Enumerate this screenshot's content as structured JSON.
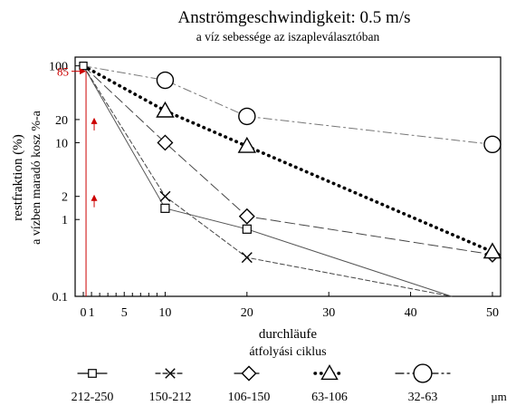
{
  "chart_data": {
    "type": "line",
    "title": "Anströmgeschwindigkeit:   0.5   m/s",
    "subtitle": "a víz sebessége az iszapleválasztóban",
    "ylabel": "restfraktion (%)",
    "ylabel2": "a vízben maradó kosz %-a",
    "xlabel": "durchläufe",
    "xlabel2": "átfolyási ciklus",
    "unit": "µm",
    "yscale": "log",
    "xlim": [
      -1,
      51
    ],
    "ylim": [
      0.1,
      130
    ],
    "x_ticks": [
      0,
      1,
      5,
      10,
      20,
      30,
      40,
      50
    ],
    "x_tick_labels": [
      "0",
      "1",
      "5",
      "10",
      "20",
      "30",
      "40",
      "50"
    ],
    "x_minor_ticks": [
      2,
      3,
      4,
      6,
      7,
      8,
      9
    ],
    "y_ticks": [
      100,
      20,
      10,
      2,
      1,
      0.1
    ],
    "y_tick_labels": [
      "100",
      "20",
      "10",
      "2",
      "1",
      "0.1"
    ],
    "grid": false,
    "legend_position": "bottom",
    "annotation": {
      "label": "85",
      "y": 85,
      "x": 0,
      "color": "#cc0000",
      "arrows_at_y": [
        2,
        20
      ],
      "arrow_x": 1
    },
    "series": [
      {
        "name": "212-250",
        "marker": "square",
        "dash": "solid",
        "x": [
          0,
          10,
          20,
          45
        ],
        "y": [
          100,
          1.4,
          0.75,
          0.1
        ]
      },
      {
        "name": "150-212",
        "marker": "x",
        "dash": "shortdash",
        "x": [
          0,
          10,
          20,
          45
        ],
        "y": [
          100,
          2.0,
          0.32,
          0.1
        ]
      },
      {
        "name": "106-150",
        "marker": "diamond",
        "dash": "longdash",
        "x": [
          0,
          10,
          20,
          50
        ],
        "y": [
          100,
          10,
          1.1,
          0.35
        ]
      },
      {
        "name": "63-106",
        "marker": "triangle",
        "dash": "dotted",
        "x": [
          0,
          10,
          20,
          50
        ],
        "y": [
          100,
          26,
          9,
          0.38
        ]
      },
      {
        "name": "32-63",
        "marker": "circle",
        "dash": "dashdot",
        "x": [
          0,
          10,
          20,
          50
        ],
        "y": [
          100,
          65,
          22,
          9.5
        ]
      }
    ]
  }
}
